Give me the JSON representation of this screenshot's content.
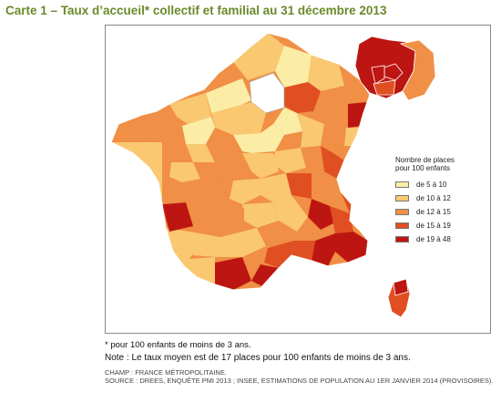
{
  "title": "Carte 1 – Taux d’accueil* collectif et familial  au 31 décembre 2013",
  "legend": {
    "title_line1": "Nombre de places",
    "title_line2": "pour 100 enfants",
    "items": [
      {
        "label": "de 5 à 10",
        "color": "#fbeca6"
      },
      {
        "label": "de 10 à 12",
        "color": "#f9c870"
      },
      {
        "label": "de 12 à 15",
        "color": "#f08f45"
      },
      {
        "label": "de 15 à 19",
        "color": "#e04f22"
      },
      {
        "label": "de 19 à 48",
        "color": "#bd1612"
      }
    ]
  },
  "map": {
    "name": "France métropolitaine par département",
    "inset": "Paris et petite couronne (Ile-de-France)",
    "no_data_color": "#ffffff",
    "border_color": "#ffffff"
  },
  "footnote": "* pour 100 enfants de moins de 3 ans.",
  "note": "Note : Le taux moyen est de 17 places pour 100 enfants de moins de 3 ans.",
  "champ": "CHAMP : FRANCE MÉTROPOLITAINE.",
  "source": "SOURCE : DREES, ENQUÊTE PMI 2013 ; INSEE, ESTIMATIONS DE POPULATION AU 1ER JANVIER 2014 (PROVISOIRES)."
}
